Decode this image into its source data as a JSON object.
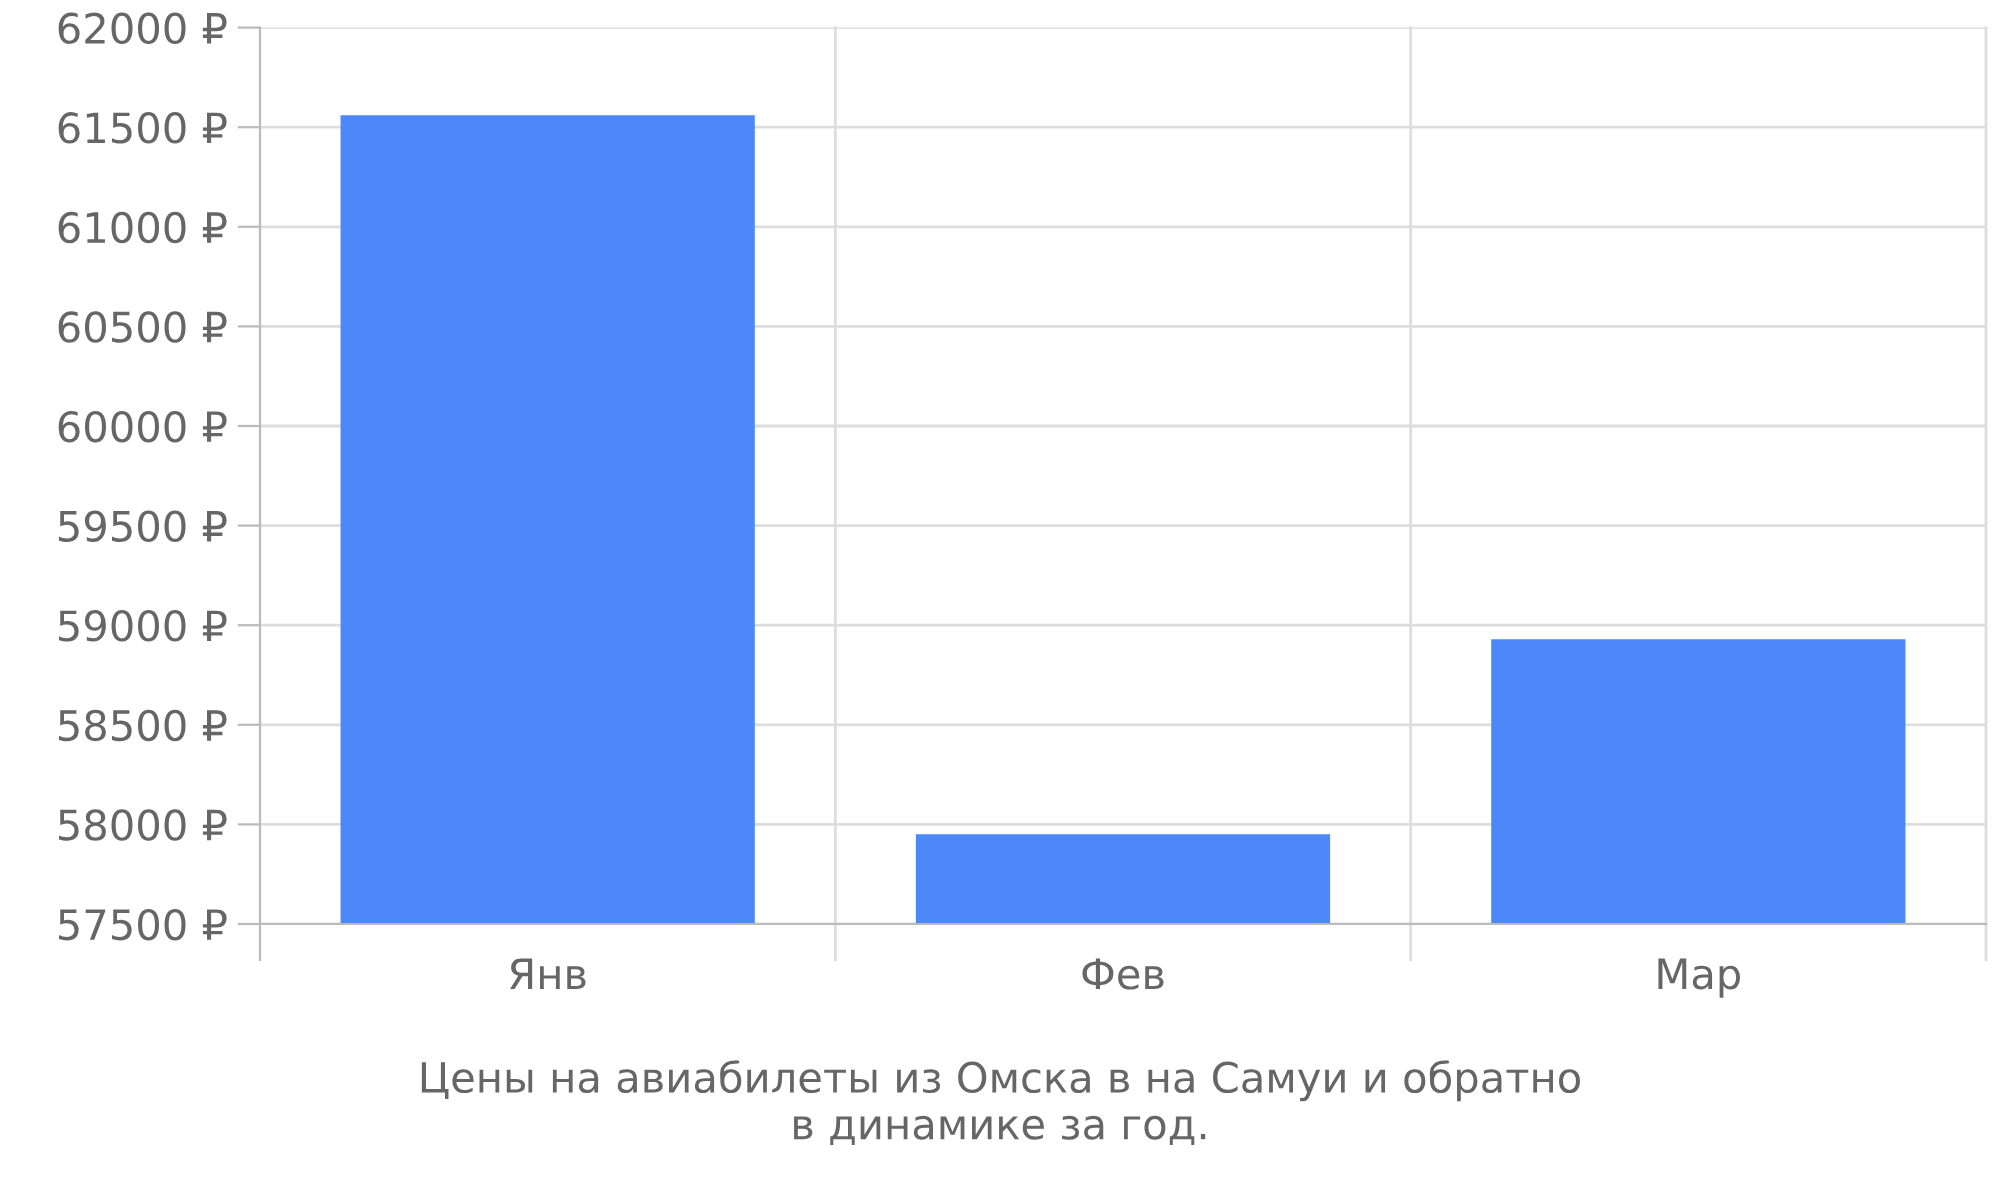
{
  "chart_data": {
    "type": "bar",
    "categories": [
      "Янв",
      "Фев",
      "Мар"
    ],
    "values": [
      61560,
      57950,
      58930
    ],
    "color": "#4d88f9",
    "ylim": [
      57500,
      62000
    ],
    "yticks": [
      {
        "value": 57500,
        "label": "57500 ₽"
      },
      {
        "value": 58000,
        "label": "58000 ₽"
      },
      {
        "value": 58500,
        "label": "58500 ₽"
      },
      {
        "value": 59000,
        "label": "59000 ₽"
      },
      {
        "value": 59500,
        "label": "59500 ₽"
      },
      {
        "value": 60000,
        "label": "60000 ₽"
      },
      {
        "value": 60500,
        "label": "60500 ₽"
      },
      {
        "value": 61000,
        "label": "61000 ₽"
      },
      {
        "value": 61500,
        "label": "61500 ₽"
      },
      {
        "value": 62000,
        "label": "62000 ₽"
      }
    ],
    "grid": true,
    "annotations": [
      "Цены на авиабилеты из Омска в на Самуи и обратно\nв динамике за год."
    ]
  }
}
